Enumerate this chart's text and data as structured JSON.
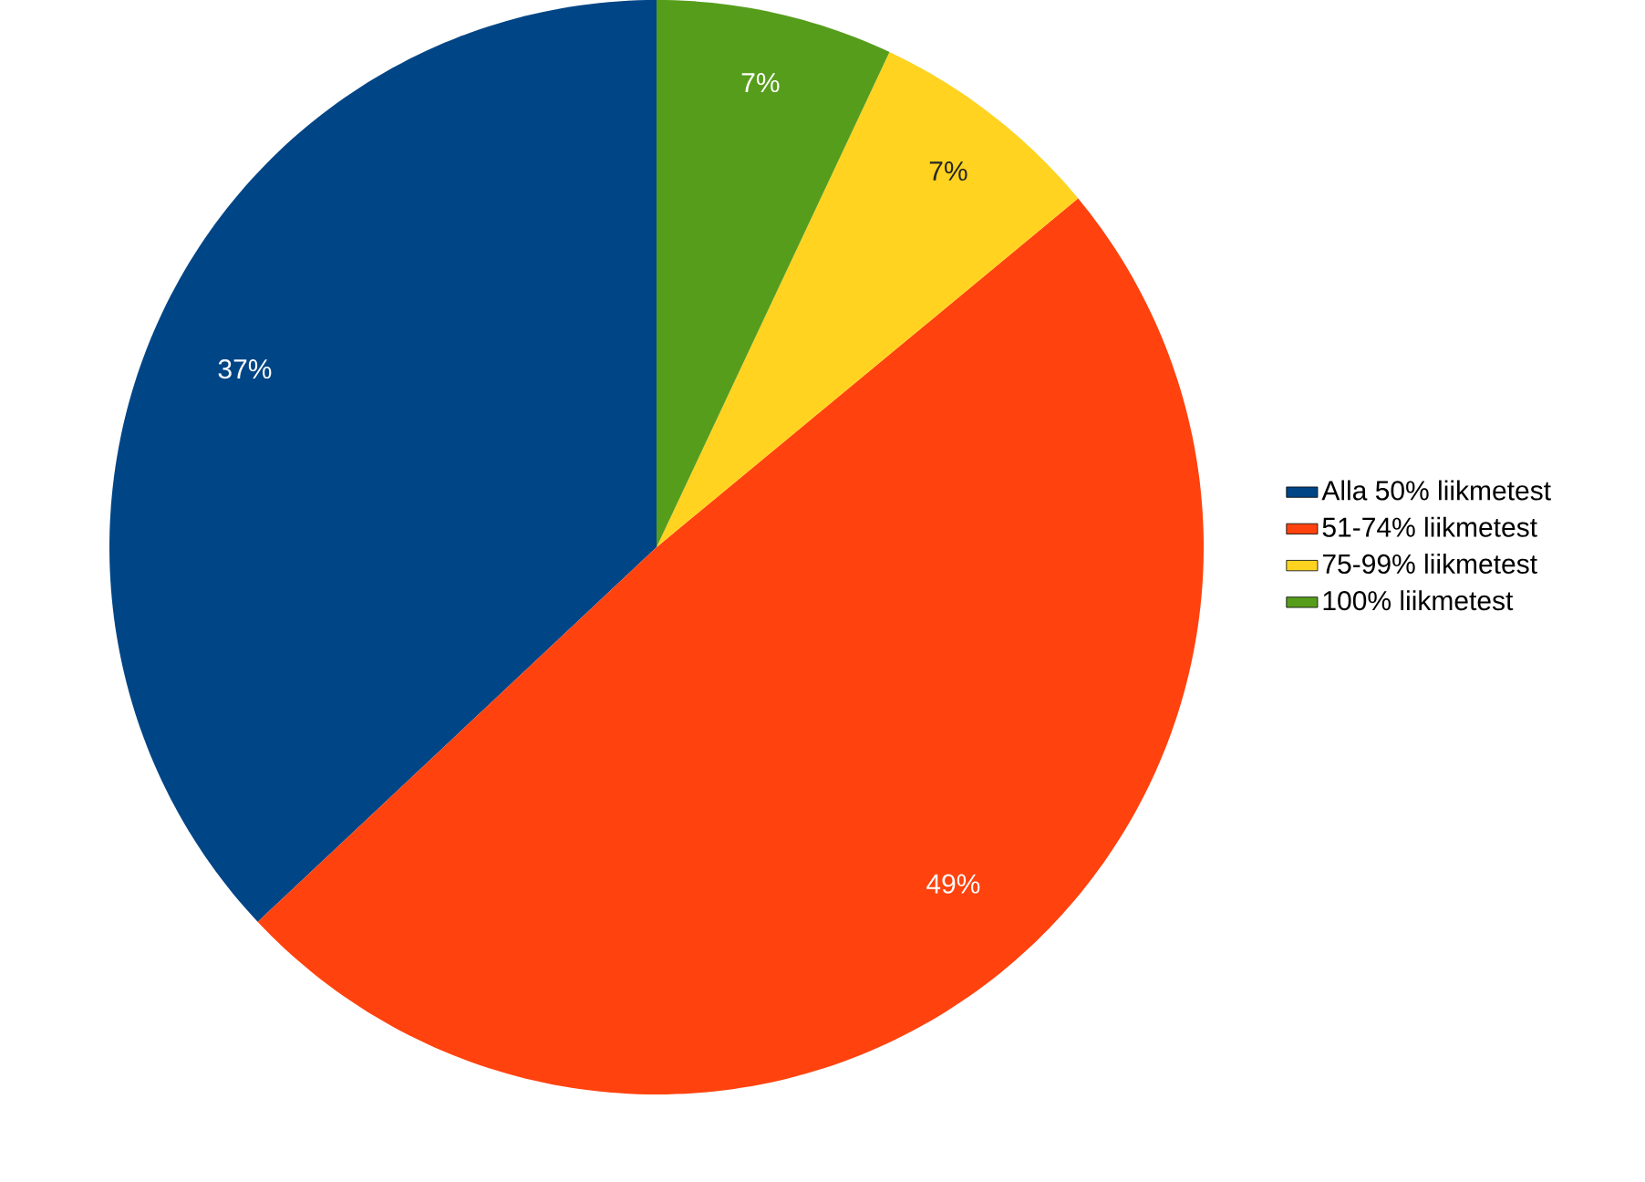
{
  "chart_data": {
    "type": "pie",
    "categories": [
      "Alla 50% liikmetest",
      "51-74% liikmetest",
      "75-99% liikmetest",
      "100% liikmetest"
    ],
    "values": [
      37,
      49,
      7,
      7
    ],
    "value_labels": [
      "37%",
      "49%",
      "7%",
      "7%"
    ],
    "colors": [
      "#004586",
      "#ff420e",
      "#ffd320",
      "#579d1c"
    ],
    "legend": "right"
  }
}
